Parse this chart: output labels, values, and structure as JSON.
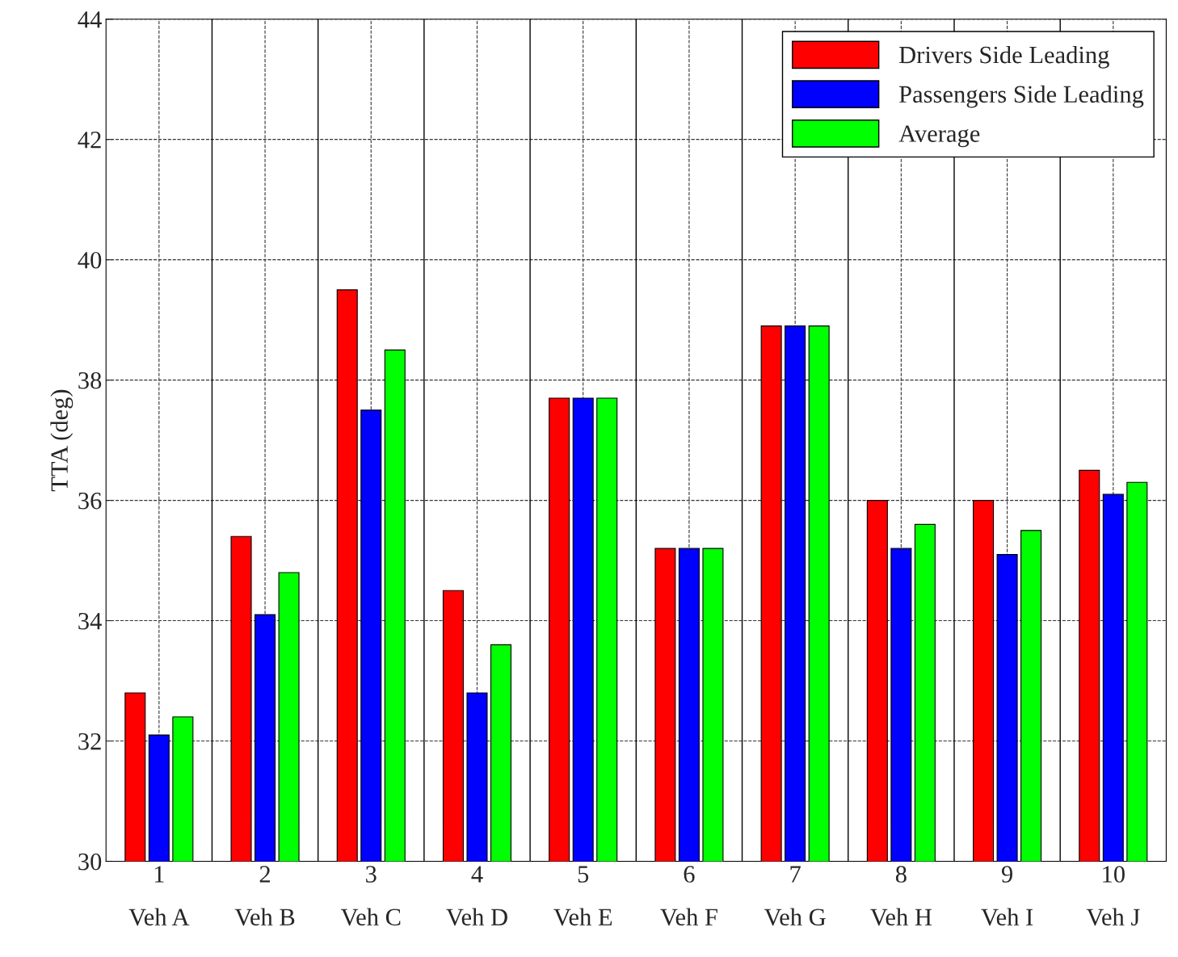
{
  "chart_data": {
    "type": "bar",
    "ylabel": "TTA (deg)",
    "x": [
      1,
      2,
      3,
      4,
      5,
      6,
      7,
      8,
      9,
      10
    ],
    "xlim": [
      0.5,
      10.5
    ],
    "xticks": [
      {
        "value": 1,
        "label": "1\nVeh A"
      },
      {
        "value": 2,
        "label": "2\nVeh B"
      },
      {
        "value": 3,
        "label": "3\nVeh C"
      },
      {
        "value": 4,
        "label": "4\nVeh D"
      },
      {
        "value": 5,
        "label": "5\nVeh E"
      },
      {
        "value": 6,
        "label": "6\nVeh F"
      },
      {
        "value": 7,
        "label": "7\nVeh G"
      },
      {
        "value": 8,
        "label": "8\nVeh H"
      },
      {
        "value": 9,
        "label": "9\nVeh I"
      },
      {
        "value": 10,
        "label": "10\nVeh J"
      }
    ],
    "ylim": [
      30,
      44
    ],
    "yticks": [
      30,
      32,
      34,
      36,
      38,
      40,
      42,
      44
    ],
    "series": [
      {
        "name": "Drivers Side Leading",
        "color": "#ff0000",
        "values": [
          32.8,
          35.4,
          39.5,
          34.5,
          37.7,
          35.2,
          38.9,
          36.0,
          36.0,
          36.5
        ]
      },
      {
        "name": "Passengers Side Leading",
        "color": "#0000ff",
        "values": [
          32.1,
          34.1,
          37.5,
          32.8,
          37.7,
          35.2,
          38.9,
          35.2,
          35.1,
          36.1
        ]
      },
      {
        "name": "Average",
        "color": "#00ff00",
        "values": [
          32.4,
          34.8,
          38.5,
          33.6,
          37.7,
          35.2,
          38.9,
          35.6,
          35.5,
          36.3
        ]
      }
    ],
    "ref_lines": [
      {
        "axis": "x",
        "value": 1.5,
        "color": "#000000",
        "line_style": "solid"
      },
      {
        "axis": "x",
        "value": 2.5,
        "color": "#000000",
        "line_style": "solid"
      },
      {
        "axis": "x",
        "value": 3.5,
        "color": "#000000",
        "line_style": "solid"
      },
      {
        "axis": "x",
        "value": 4.5,
        "color": "#000000",
        "line_style": "solid"
      },
      {
        "axis": "x",
        "value": 5.5,
        "color": "#000000",
        "line_style": "solid"
      },
      {
        "axis": "x",
        "value": 6.5,
        "color": "#000000",
        "line_style": "solid"
      },
      {
        "axis": "x",
        "value": 7.5,
        "color": "#000000",
        "line_style": "solid"
      },
      {
        "axis": "x",
        "value": 8.5,
        "color": "#000000",
        "line_style": "solid"
      },
      {
        "axis": "x",
        "value": 9.5,
        "color": "#000000",
        "line_style": "solid"
      }
    ],
    "grid": true,
    "legend": "top right"
  }
}
